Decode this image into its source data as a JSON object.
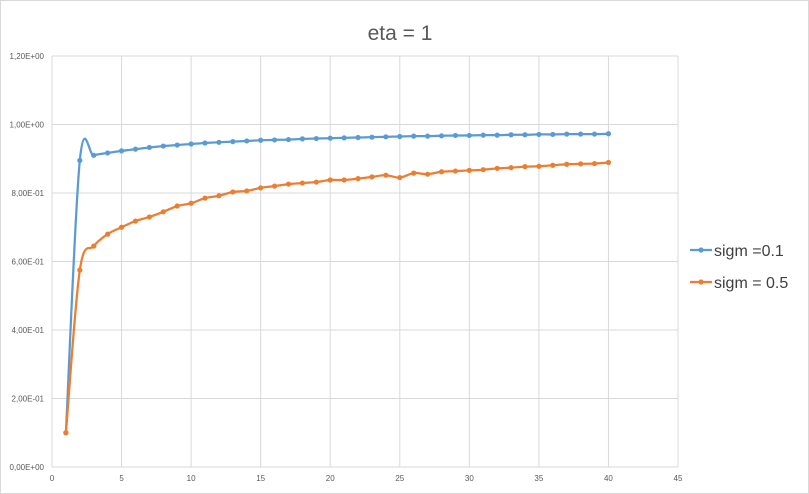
{
  "chart_data": {
    "type": "line",
    "title": "eta = 1",
    "xlabel": "",
    "ylabel": "",
    "xlim": [
      0,
      45
    ],
    "ylim": [
      0,
      1.2
    ],
    "xticks": [
      0,
      5,
      10,
      15,
      20,
      25,
      30,
      35,
      40,
      45
    ],
    "xtick_labels": [
      "0",
      "5",
      "10",
      "15",
      "20",
      "25",
      "30",
      "35",
      "40",
      "45"
    ],
    "yticks": [
      0,
      0.2,
      0.4,
      0.6,
      0.8,
      1.0,
      1.2
    ],
    "ytick_labels": [
      "0,00E+00",
      "2,00E-01",
      "4,00E-01",
      "6,00E-01",
      "8,00E-01",
      "1,00E+00",
      "1,20E+00"
    ],
    "grid": true,
    "legend_position": "right",
    "series": [
      {
        "name": "sigm =0.1",
        "color": "#5b9bd5",
        "x": [
          1,
          2,
          3,
          4,
          5,
          6,
          7,
          8,
          9,
          10,
          11,
          12,
          13,
          14,
          15,
          16,
          17,
          18,
          19,
          20,
          21,
          22,
          23,
          24,
          25,
          26,
          27,
          28,
          29,
          30,
          31,
          32,
          33,
          34,
          35,
          36,
          37,
          38,
          39,
          40
        ],
        "values": [
          0.1,
          0.895,
          0.91,
          0.917,
          0.923,
          0.928,
          0.933,
          0.937,
          0.94,
          0.943,
          0.946,
          0.948,
          0.95,
          0.952,
          0.954,
          0.955,
          0.956,
          0.958,
          0.959,
          0.96,
          0.961,
          0.962,
          0.963,
          0.964,
          0.965,
          0.966,
          0.966,
          0.967,
          0.968,
          0.968,
          0.969,
          0.969,
          0.97,
          0.97,
          0.971,
          0.971,
          0.972,
          0.972,
          0.972,
          0.973
        ]
      },
      {
        "name": "sigm = 0.5",
        "color": "#ed7d31",
        "x": [
          1,
          2,
          3,
          4,
          5,
          6,
          7,
          8,
          9,
          10,
          11,
          12,
          13,
          14,
          15,
          16,
          17,
          18,
          19,
          20,
          21,
          22,
          23,
          24,
          25,
          26,
          27,
          28,
          29,
          30,
          31,
          32,
          33,
          34,
          35,
          36,
          37,
          38,
          39,
          40
        ],
        "values": [
          0.1,
          0.575,
          0.645,
          0.68,
          0.7,
          0.718,
          0.73,
          0.745,
          0.762,
          0.77,
          0.785,
          0.792,
          0.803,
          0.806,
          0.815,
          0.82,
          0.826,
          0.829,
          0.832,
          0.838,
          0.838,
          0.842,
          0.847,
          0.852,
          0.845,
          0.858,
          0.855,
          0.862,
          0.864,
          0.866,
          0.868,
          0.872,
          0.874,
          0.877,
          0.878,
          0.881,
          0.884,
          0.885,
          0.886,
          0.889
        ]
      }
    ]
  }
}
